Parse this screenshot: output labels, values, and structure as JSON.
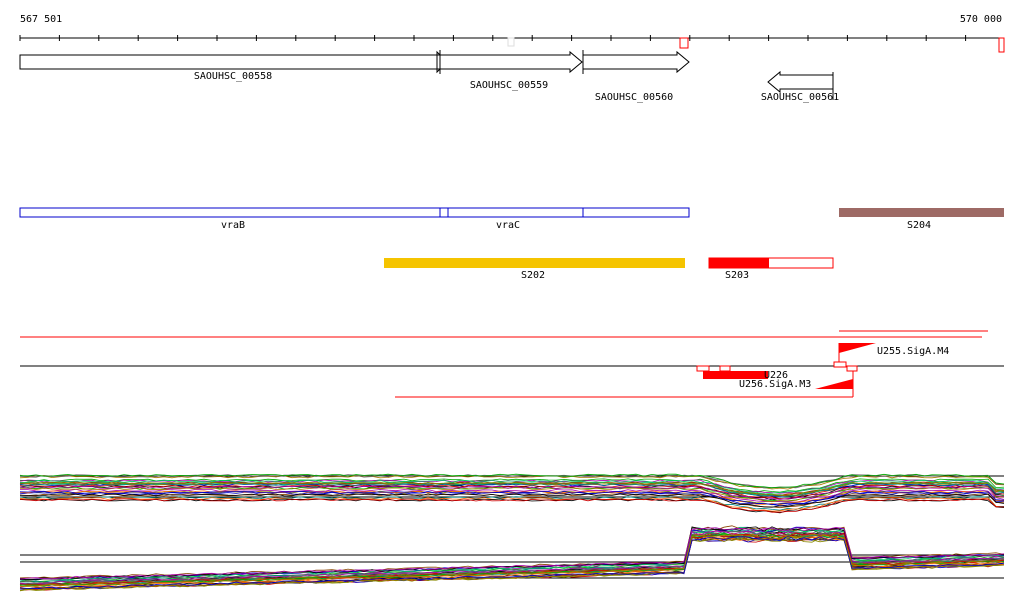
{
  "axis": {
    "start_label": "567 501",
    "end_label": "570 000",
    "start": 567501,
    "end": 570000
  },
  "genes": [
    {
      "label": "SAOUHSC_00558",
      "start": 567501,
      "end": 568572,
      "strand": "+"
    },
    {
      "label": "SAOUHSC_00559",
      "start": 568567,
      "end": 568895,
      "strand": "+"
    },
    {
      "label": "SAOUHSC_00560",
      "start": 568898,
      "end": 569170,
      "strand": "+"
    },
    {
      "label": "SAOUHSC_00561",
      "start": 569438,
      "end": 569571,
      "strand": "-"
    }
  ],
  "operons": [
    {
      "label": "vraB",
      "start": 567501,
      "end": 568592
    },
    {
      "label": "vraC",
      "start": 568592,
      "end": 569170
    }
  ],
  "segments": [
    {
      "label": "S202",
      "start": 568425,
      "end": 569160,
      "color": "#f5c400",
      "fill": 1.0
    },
    {
      "label": "S203",
      "start": 569220,
      "end": 569572,
      "color": "#ff0000",
      "fill": 0.5
    },
    {
      "label": "S204",
      "start": 569572,
      "end": 570000,
      "color": "#9e6a65",
      "fill": 1.0
    }
  ],
  "features": [
    {
      "label": "U255.SigA.M4"
    },
    {
      "label": "U226"
    },
    {
      "label": "U256.SigA.M3"
    }
  ],
  "colors": {
    "gene_outline": "#000000",
    "operon_outline": "#0000cc",
    "feature_red": "#ff0000"
  }
}
